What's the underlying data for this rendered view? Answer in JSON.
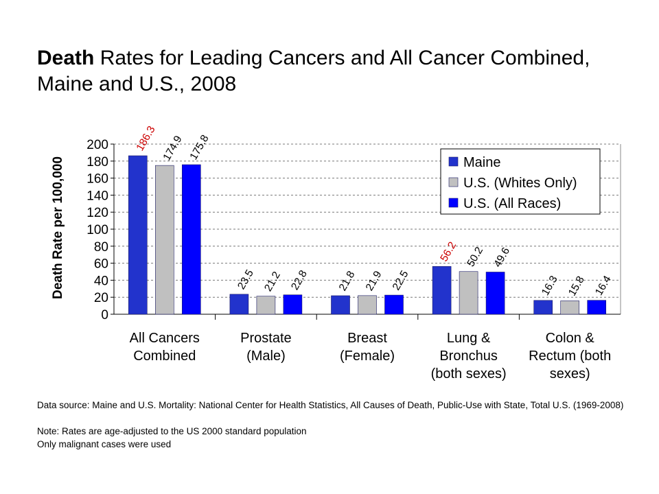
{
  "title": {
    "bold": "Death",
    "rest": " Rates for Leading Cancers and All Cancer Combined, Maine and U.S., 2008"
  },
  "footnotes": {
    "source": "Data source:  Maine and U.S. Mortality: National Center for Health Statistics, All Causes of Death, Public-Use with State, Total U.S. (1969-2008)",
    "note1": "Note:  Rates are age-adjusted to the US 2000 standard population",
    "note2": "Only malignant cases were used"
  },
  "chart_data": {
    "type": "bar",
    "ylabel": "Death Rate per 100,000",
    "ylim": [
      0,
      200
    ],
    "yticks": [
      0,
      20,
      40,
      60,
      80,
      100,
      120,
      140,
      160,
      180,
      200
    ],
    "grid": true,
    "legend_position": "top-right",
    "categories": [
      [
        "All Cancers",
        "Combined"
      ],
      [
        "Prostate",
        "(Male)"
      ],
      [
        "Breast",
        "(Female)"
      ],
      [
        "Lung &",
        "Bronchus",
        "(both sexes)"
      ],
      [
        "Colon &",
        "Rectum (both",
        "sexes)"
      ]
    ],
    "series": [
      {
        "name": "Maine",
        "color": "#2233cc",
        "values": [
          186.3,
          23.5,
          21.8,
          56.2,
          16.3
        ]
      },
      {
        "name": "U.S. (Whites Only)",
        "color": "#c0c0c0",
        "values": [
          174.9,
          21.2,
          21.9,
          50.2,
          15.8
        ]
      },
      {
        "name": "U.S. (All Races)",
        "color": "#0000ff",
        "values": [
          175.8,
          22.8,
          22.5,
          49.6,
          16.4
        ]
      }
    ],
    "data_labels": [
      [
        "186.3",
        "174.9",
        "175.8"
      ],
      [
        "23.5",
        "21.2",
        "22.8"
      ],
      [
        "21.8",
        "21.9",
        "22.5"
      ],
      [
        "56.2",
        "50.2",
        "49.6"
      ],
      [
        "16.3",
        "15.8",
        "16.4"
      ]
    ],
    "highlight_label_color": "#cc0000",
    "highlighted_labels": [
      [
        0,
        0
      ],
      [
        3,
        0
      ]
    ]
  }
}
